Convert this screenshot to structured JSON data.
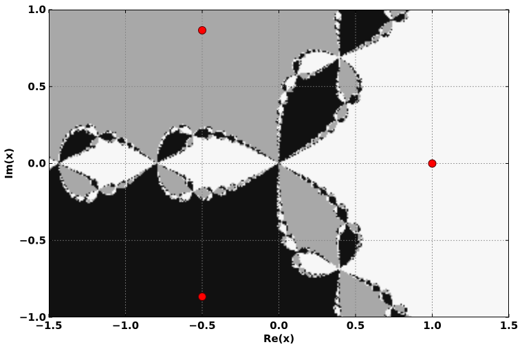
{
  "chart_data": {
    "type": "scatter",
    "title": "",
    "xlabel": "Re(x)",
    "ylabel": "Im(x)",
    "xlim": [
      -1.5,
      1.5
    ],
    "ylim": [
      -1.0,
      1.0
    ],
    "x_ticks": [
      -1.5,
      -1.0,
      -0.5,
      0.0,
      0.5,
      1.0,
      1.5
    ],
    "x_tick_labels": [
      "−1.5",
      "−1.0",
      "−0.5",
      "0.0",
      "0.5",
      "1.0",
      "1.5"
    ],
    "y_ticks": [
      -1.0,
      -0.5,
      0.0,
      0.5,
      1.0
    ],
    "y_tick_labels": [
      "−1.0",
      "−0.5",
      "0.0",
      "0.5",
      "1.0"
    ],
    "grid": true,
    "background": "basins of attraction (three regions: light, gray, black)",
    "region_colors": {
      "root_1": "#f7f7f7",
      "root_2": "#a8a8a8",
      "root_3": "#111111"
    },
    "series": [
      {
        "marker_color": "#ff0000",
        "points": [
          [
            1.0,
            0.0
          ],
          [
            -0.5,
            0.866
          ],
          [
            -0.5,
            -0.866
          ]
        ]
      }
    ]
  }
}
